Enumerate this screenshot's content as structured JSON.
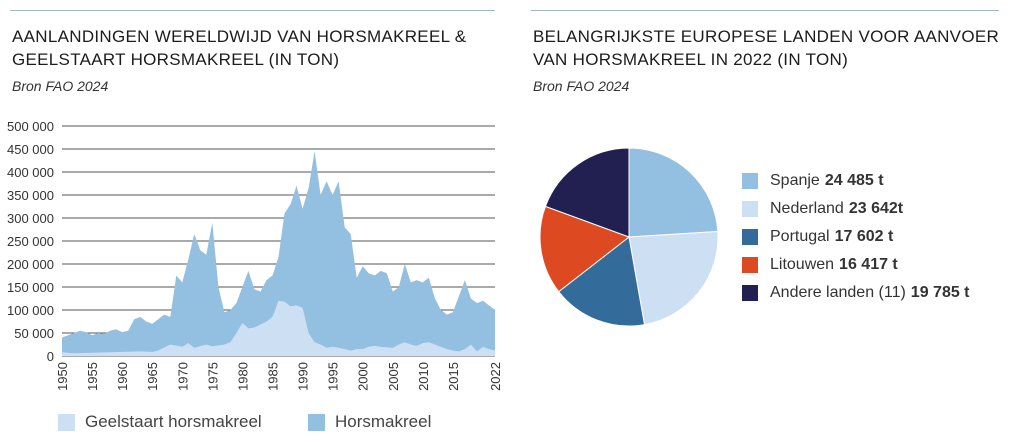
{
  "left_chart": {
    "title_line1": "AANLANDINGEN WERELDWIJD VAN HORSMAKREEL &",
    "title_line2": "GEELSTAART HORSMAKREEL (IN TON)",
    "source": "Bron FAO 2024"
  },
  "right_chart": {
    "title_line1": "BELANGRIJKSTE EUROPESE LANDEN VOOR AANVOER",
    "title_line2": "VAN HORSMAKREEL IN 2022 (IN TON)",
    "source": "Bron FAO 2024"
  },
  "chart_data": [
    {
      "type": "area",
      "stacked": false,
      "y_ticks": [
        "500 000",
        "450 000",
        "400 000",
        "350 000",
        "300 000",
        "250 000",
        "200 000",
        "150 000",
        "100 000",
        "50 000",
        "0"
      ],
      "x_ticks": [
        "1950",
        "1955",
        "1960",
        "1965",
        "1970",
        "1975",
        "1980",
        "1985",
        "1990",
        "1995",
        "2000",
        "2005",
        "2010",
        "2015",
        "2022"
      ],
      "ylim": [
        0,
        500000
      ],
      "xlim": [
        1950,
        2022
      ],
      "grid": true,
      "legend_position": "bottom",
      "series": [
        {
          "name": "Geelstaart horsmakreel",
          "color": "#cde0f3",
          "points": [
            [
              1950,
              8000
            ],
            [
              1952,
              6000
            ],
            [
              1955,
              7000
            ],
            [
              1958,
              8000
            ],
            [
              1960,
              9000
            ],
            [
              1963,
              10000
            ],
            [
              1965,
              9000
            ],
            [
              1966,
              12000
            ],
            [
              1968,
              25000
            ],
            [
              1970,
              20000
            ],
            [
              1971,
              28000
            ],
            [
              1972,
              18000
            ],
            [
              1974,
              25000
            ],
            [
              1975,
              21000
            ],
            [
              1977,
              25000
            ],
            [
              1978,
              30000
            ],
            [
              1979,
              50000
            ],
            [
              1980,
              72000
            ],
            [
              1981,
              60000
            ],
            [
              1982,
              62000
            ],
            [
              1984,
              75000
            ],
            [
              1985,
              85000
            ],
            [
              1986,
              120000
            ],
            [
              1987,
              118000
            ],
            [
              1988,
              108000
            ],
            [
              1989,
              110000
            ],
            [
              1990,
              105000
            ],
            [
              1991,
              50000
            ],
            [
              1992,
              30000
            ],
            [
              1993,
              25000
            ],
            [
              1994,
              18000
            ],
            [
              1995,
              20000
            ],
            [
              1996,
              18000
            ],
            [
              1997,
              15000
            ],
            [
              1998,
              12000
            ],
            [
              1999,
              15000
            ],
            [
              2000,
              15000
            ],
            [
              2001,
              20000
            ],
            [
              2002,
              22000
            ],
            [
              2003,
              20000
            ],
            [
              2005,
              18000
            ],
            [
              2006,
              25000
            ],
            [
              2007,
              30000
            ],
            [
              2008,
              25000
            ],
            [
              2009,
              22000
            ],
            [
              2010,
              28000
            ],
            [
              2011,
              30000
            ],
            [
              2012,
              25000
            ],
            [
              2013,
              20000
            ],
            [
              2014,
              15000
            ],
            [
              2015,
              12000
            ],
            [
              2016,
              10000
            ],
            [
              2017,
              15000
            ],
            [
              2018,
              25000
            ],
            [
              2019,
              10000
            ],
            [
              2020,
              20000
            ],
            [
              2021,
              15000
            ],
            [
              2022,
              12000
            ]
          ]
        },
        {
          "name": "Horsmakreel",
          "color": "#93bfe1",
          "points": [
            [
              1950,
              40000
            ],
            [
              1951,
              45000
            ],
            [
              1952,
              50000
            ],
            [
              1953,
              55000
            ],
            [
              1954,
              52000
            ],
            [
              1955,
              45000
            ],
            [
              1956,
              50000
            ],
            [
              1957,
              48000
            ],
            [
              1958,
              55000
            ],
            [
              1959,
              58000
            ],
            [
              1960,
              52000
            ],
            [
              1961,
              55000
            ],
            [
              1962,
              80000
            ],
            [
              1963,
              85000
            ],
            [
              1964,
              75000
            ],
            [
              1965,
              70000
            ],
            [
              1966,
              80000
            ],
            [
              1967,
              90000
            ],
            [
              1968,
              85000
            ],
            [
              1969,
              175000
            ],
            [
              1970,
              160000
            ],
            [
              1971,
              210000
            ],
            [
              1972,
              265000
            ],
            [
              1973,
              230000
            ],
            [
              1974,
              220000
            ],
            [
              1975,
              290000
            ],
            [
              1976,
              150000
            ],
            [
              1977,
              95000
            ],
            [
              1978,
              100000
            ],
            [
              1979,
              115000
            ],
            [
              1980,
              150000
            ],
            [
              1981,
              185000
            ],
            [
              1982,
              145000
            ],
            [
              1983,
              140000
            ],
            [
              1984,
              165000
            ],
            [
              1985,
              175000
            ],
            [
              1986,
              215000
            ],
            [
              1987,
              310000
            ],
            [
              1988,
              330000
            ],
            [
              1989,
              370000
            ],
            [
              1990,
              320000
            ],
            [
              1991,
              365000
            ],
            [
              1992,
              445000
            ],
            [
              1993,
              350000
            ],
            [
              1994,
              380000
            ],
            [
              1995,
              350000
            ],
            [
              1996,
              380000
            ],
            [
              1997,
              280000
            ],
            [
              1998,
              265000
            ],
            [
              1999,
              170000
            ],
            [
              2000,
              195000
            ],
            [
              2001,
              180000
            ],
            [
              2002,
              175000
            ],
            [
              2003,
              185000
            ],
            [
              2004,
              180000
            ],
            [
              2005,
              140000
            ],
            [
              2006,
              150000
            ],
            [
              2007,
              200000
            ],
            [
              2008,
              160000
            ],
            [
              2009,
              165000
            ],
            [
              2010,
              160000
            ],
            [
              2011,
              170000
            ],
            [
              2012,
              125000
            ],
            [
              2013,
              100000
            ],
            [
              2014,
              90000
            ],
            [
              2015,
              95000
            ],
            [
              2016,
              130000
            ],
            [
              2017,
              165000
            ],
            [
              2018,
              125000
            ],
            [
              2019,
              115000
            ],
            [
              2020,
              120000
            ],
            [
              2021,
              110000
            ],
            [
              2022,
              100000
            ]
          ]
        }
      ]
    },
    {
      "type": "pie",
      "slices": [
        {
          "label": "Spanje",
          "value": 24485,
          "value_label": "24 485 t",
          "color": "#93bfe1"
        },
        {
          "label": "Nederland",
          "value": 23642,
          "value_label": "23 642t",
          "color": "#cde0f3"
        },
        {
          "label": "Portugal",
          "value": 17602,
          "value_label": "17 602 t",
          "color": "#336b9b"
        },
        {
          "label": "Litouwen",
          "value": 16417,
          "value_label": "16 417 t",
          "color": "#dd4a22"
        },
        {
          "label": "Andere landen (11)",
          "value": 19785,
          "value_label": "19 785 t",
          "color": "#222050"
        }
      ]
    }
  ]
}
